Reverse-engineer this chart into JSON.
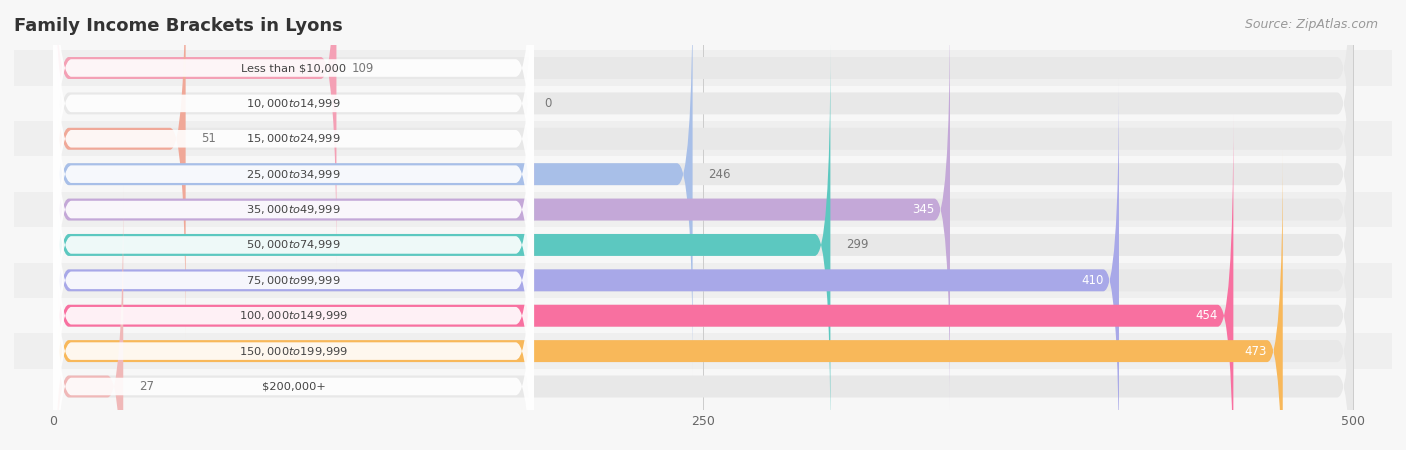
{
  "title": "Family Income Brackets in Lyons",
  "source": "Source: ZipAtlas.com",
  "categories": [
    "Less than $10,000",
    "$10,000 to $14,999",
    "$15,000 to $24,999",
    "$25,000 to $34,999",
    "$35,000 to $49,999",
    "$50,000 to $74,999",
    "$75,000 to $99,999",
    "$100,000 to $149,999",
    "$150,000 to $199,999",
    "$200,000+"
  ],
  "values": [
    109,
    0,
    51,
    246,
    345,
    299,
    410,
    454,
    473,
    27
  ],
  "bar_colors": [
    "#f4a0b5",
    "#f5c98a",
    "#f0a898",
    "#a8bfe8",
    "#c4a8d8",
    "#5cc8c0",
    "#a8a8e8",
    "#f870a0",
    "#f8b85a",
    "#f0b8b8"
  ],
  "value_inside": [
    false,
    false,
    false,
    false,
    true,
    false,
    true,
    true,
    true,
    false
  ],
  "xlim": [
    0,
    500
  ],
  "xticks": [
    0,
    250,
    500
  ],
  "background_color": "#f7f7f7",
  "bar_background_color": "#e8e8e8",
  "row_background_color": "#f0f0f0",
  "title_fontsize": 13,
  "source_fontsize": 9,
  "bar_height": 0.62
}
